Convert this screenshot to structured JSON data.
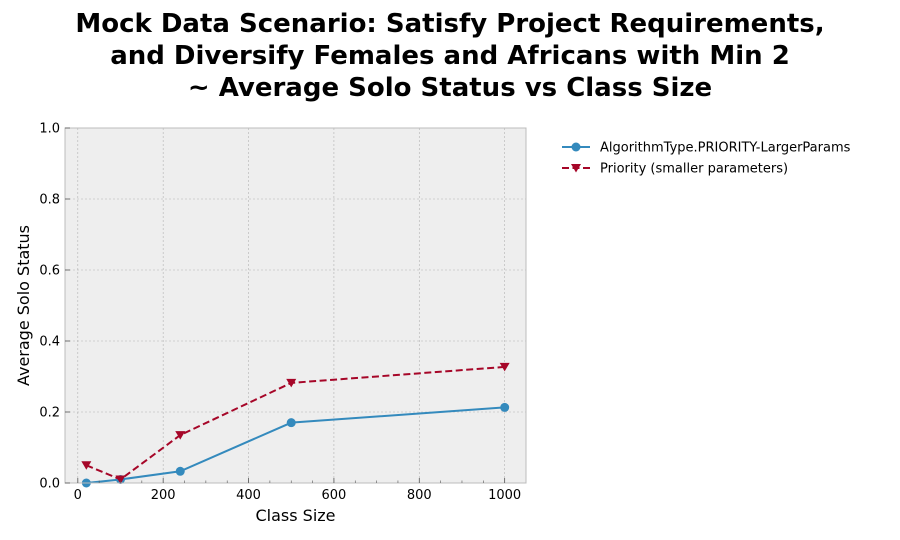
{
  "chart_data": {
    "type": "line",
    "title_lines": [
      "Mock Data Scenario: Satisfy Project Requirements,",
      "and Diversify Females and Africans with Min 2",
      "~ Average Solo Status vs Class Size"
    ],
    "xlabel": "Class Size",
    "ylabel": "Average Solo Status",
    "xlim": [
      -30,
      1050
    ],
    "ylim": [
      0,
      1.0
    ],
    "xticks": [
      0,
      200,
      400,
      600,
      800,
      1000
    ],
    "yticks": [
      0.0,
      0.2,
      0.4,
      0.6,
      0.8,
      1.0
    ],
    "xtick_labels": [
      "0",
      "200",
      "400",
      "600",
      "800",
      "1000"
    ],
    "ytick_labels": [
      "0.0",
      "0.2",
      "0.4",
      "0.6",
      "0.8",
      "1.0"
    ],
    "grid": true,
    "legend_position": "outside-right",
    "series": [
      {
        "name": "AlgorithmType.PRIORITY-LargerParams",
        "color": "#348ABD",
        "marker": "circle",
        "linestyle": "solid",
        "x": [
          20,
          100,
          240,
          500,
          1000
        ],
        "y": [
          0.0,
          0.01,
          0.033,
          0.17,
          0.213
        ]
      },
      {
        "name": "Priority (smaller parameters)",
        "color": "#A60628",
        "marker": "triangle-down",
        "linestyle": "dashed",
        "x": [
          20,
          100,
          240,
          500,
          1000
        ],
        "y": [
          0.05,
          0.01,
          0.135,
          0.282,
          0.327
        ]
      }
    ]
  }
}
